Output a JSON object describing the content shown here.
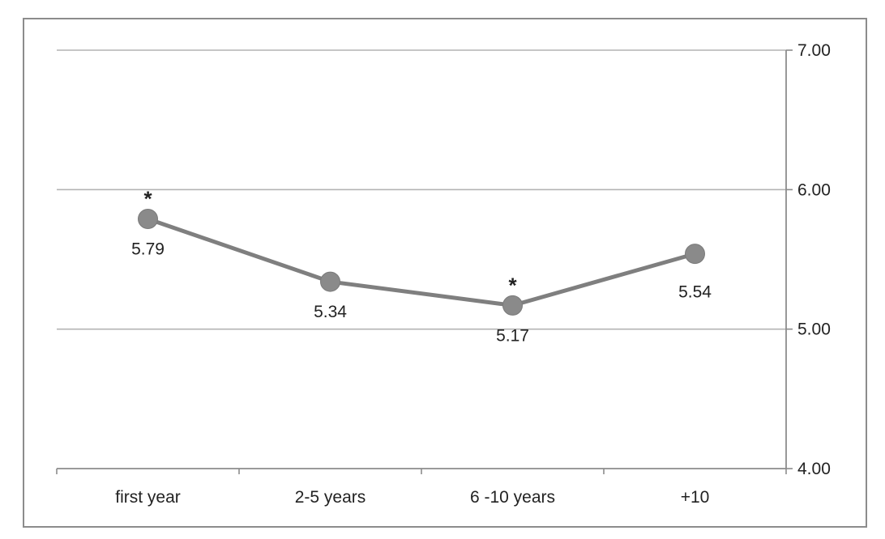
{
  "chart_data": {
    "type": "line",
    "categories": [
      "first year",
      "2-5 years",
      "6 -10 years",
      "+10"
    ],
    "series": [
      {
        "values": [
          5.79,
          5.34,
          5.17,
          5.54
        ],
        "data_labels": [
          "5.79",
          "5.34",
          "5.17",
          "5.54"
        ],
        "markers": [
          "*",
          "",
          "*",
          ""
        ],
        "color": "#7f7f7f"
      }
    ],
    "ylim": [
      4.0,
      7.0
    ],
    "y_ticks": [
      4.0,
      5.0,
      6.0,
      7.0
    ],
    "y_tick_labels": [
      "4.00",
      "5.00",
      "6.00",
      "7.00"
    ],
    "y_axis_side": "right",
    "grid": true,
    "title": "",
    "xlabel": "",
    "ylabel": ""
  }
}
